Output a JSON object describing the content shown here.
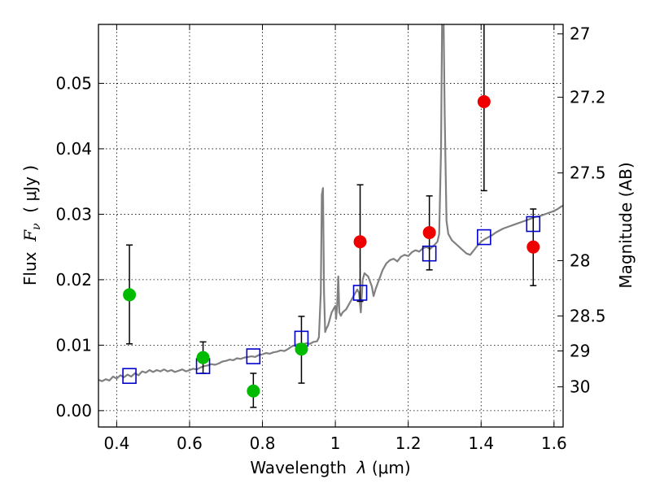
{
  "chart_data": {
    "type": "scatter",
    "xlabel": {
      "prefix": "Wavelength  ",
      "sym": "λ",
      "unit": " (μm)"
    },
    "ylabel": {
      "prefix": "Flux  ",
      "sym": "F",
      "sub": "ν",
      "unit": "  ( μJy )"
    },
    "ylabel_right": "Magnitude (AB)",
    "xlim": [
      0.35,
      1.625
    ],
    "ylim": [
      -0.0025,
      0.059
    ],
    "grid": true,
    "x_ticks": [
      {
        "value": 0.4,
        "label": "0.4"
      },
      {
        "value": 0.6,
        "label": "0.6"
      },
      {
        "value": 0.8,
        "label": "0.8"
      },
      {
        "value": 1.0,
        "label": "1"
      },
      {
        "value": 1.2,
        "label": "1.2"
      },
      {
        "value": 1.4,
        "label": "1.4"
      },
      {
        "value": 1.6,
        "label": "1.6"
      }
    ],
    "y_ticks": [
      {
        "value": 0.0,
        "label": "0.00"
      },
      {
        "value": 0.01,
        "label": "0.01"
      },
      {
        "value": 0.02,
        "label": "0.02"
      },
      {
        "value": 0.03,
        "label": "0.03"
      },
      {
        "value": 0.04,
        "label": "0.04"
      },
      {
        "value": 0.05,
        "label": "0.05"
      }
    ],
    "right_ticks": [
      {
        "mag": 27,
        "label": "27"
      },
      {
        "mag": 27.2,
        "label": "27.2"
      },
      {
        "mag": 27.5,
        "label": "27.5"
      },
      {
        "mag": 28,
        "label": "28"
      },
      {
        "mag": 28.5,
        "label": "28.5"
      },
      {
        "mag": 29,
        "label": "29"
      },
      {
        "mag": 30,
        "label": "30"
      }
    ],
    "colors": {
      "spectrum": "#808080",
      "detection": "#00bb00",
      "upper": "#ee0000",
      "model_box": "#0000cc",
      "errorbar": "#000000"
    },
    "spectrum": [
      [
        0.35,
        0.0047
      ],
      [
        0.36,
        0.0045
      ],
      [
        0.37,
        0.0048
      ],
      [
        0.38,
        0.0046
      ],
      [
        0.39,
        0.0052
      ],
      [
        0.4,
        0.0049
      ],
      [
        0.41,
        0.0054
      ],
      [
        0.42,
        0.0051
      ],
      [
        0.43,
        0.0055
      ],
      [
        0.44,
        0.0052
      ],
      [
        0.45,
        0.0057
      ],
      [
        0.46,
        0.0054
      ],
      [
        0.47,
        0.006
      ],
      [
        0.48,
        0.0058
      ],
      [
        0.49,
        0.0062
      ],
      [
        0.5,
        0.0059
      ],
      [
        0.51,
        0.0062
      ],
      [
        0.52,
        0.006
      ],
      [
        0.53,
        0.0063
      ],
      [
        0.54,
        0.006
      ],
      [
        0.55,
        0.0062
      ],
      [
        0.56,
        0.0059
      ],
      [
        0.57,
        0.0061
      ],
      [
        0.58,
        0.0063
      ],
      [
        0.59,
        0.006
      ],
      [
        0.6,
        0.0062
      ],
      [
        0.61,
        0.0064
      ],
      [
        0.62,
        0.0063
      ],
      [
        0.63,
        0.0066
      ],
      [
        0.64,
        0.0068
      ],
      [
        0.65,
        0.0069
      ],
      [
        0.66,
        0.0071
      ],
      [
        0.67,
        0.007
      ],
      [
        0.68,
        0.0072
      ],
      [
        0.69,
        0.0075
      ],
      [
        0.7,
        0.0076
      ],
      [
        0.71,
        0.0078
      ],
      [
        0.72,
        0.0077
      ],
      [
        0.73,
        0.008
      ],
      [
        0.74,
        0.0079
      ],
      [
        0.75,
        0.0081
      ],
      [
        0.76,
        0.0082
      ],
      [
        0.77,
        0.0083
      ],
      [
        0.78,
        0.0082
      ],
      [
        0.79,
        0.0085
      ],
      [
        0.8,
        0.0086
      ],
      [
        0.81,
        0.0088
      ],
      [
        0.82,
        0.0087
      ],
      [
        0.83,
        0.0089
      ],
      [
        0.84,
        0.009
      ],
      [
        0.85,
        0.0092
      ],
      [
        0.86,
        0.0091
      ],
      [
        0.87,
        0.0094
      ],
      [
        0.88,
        0.0098
      ],
      [
        0.89,
        0.01
      ],
      [
        0.9,
        0.0102
      ],
      [
        0.91,
        0.0101
      ],
      [
        0.92,
        0.0103
      ],
      [
        0.93,
        0.0102
      ],
      [
        0.94,
        0.0105
      ],
      [
        0.95,
        0.0106
      ],
      [
        0.955,
        0.0112
      ],
      [
        0.96,
        0.018
      ],
      [
        0.963,
        0.033
      ],
      [
        0.966,
        0.034
      ],
      [
        0.969,
        0.018
      ],
      [
        0.972,
        0.012
      ],
      [
        0.975,
        0.0125
      ],
      [
        0.98,
        0.013
      ],
      [
        0.99,
        0.015
      ],
      [
        1.0,
        0.016
      ],
      [
        1.002,
        0.014
      ],
      [
        1.005,
        0.016
      ],
      [
        1.008,
        0.0205
      ],
      [
        1.011,
        0.015
      ],
      [
        1.015,
        0.0145
      ],
      [
        1.02,
        0.015
      ],
      [
        1.03,
        0.0155
      ],
      [
        1.04,
        0.0165
      ],
      [
        1.05,
        0.0175
      ],
      [
        1.06,
        0.0185
      ],
      [
        1.065,
        0.018
      ],
      [
        1.07,
        0.015
      ],
      [
        1.075,
        0.02
      ],
      [
        1.08,
        0.021
      ],
      [
        1.09,
        0.0205
      ],
      [
        1.1,
        0.019
      ],
      [
        1.105,
        0.0175
      ],
      [
        1.11,
        0.0185
      ],
      [
        1.12,
        0.02
      ],
      [
        1.13,
        0.0215
      ],
      [
        1.14,
        0.0225
      ],
      [
        1.15,
        0.023
      ],
      [
        1.16,
        0.0232
      ],
      [
        1.17,
        0.0228
      ],
      [
        1.18,
        0.0235
      ],
      [
        1.19,
        0.0238
      ],
      [
        1.2,
        0.0236
      ],
      [
        1.21,
        0.0242
      ],
      [
        1.22,
        0.0245
      ],
      [
        1.23,
        0.0243
      ],
      [
        1.24,
        0.0248
      ],
      [
        1.25,
        0.025
      ],
      [
        1.26,
        0.0247
      ],
      [
        1.27,
        0.0252
      ],
      [
        1.28,
        0.0258
      ],
      [
        1.285,
        0.027
      ],
      [
        1.29,
        0.04
      ],
      [
        1.293,
        0.06
      ],
      [
        1.297,
        0.06
      ],
      [
        1.3,
        0.045
      ],
      [
        1.305,
        0.029
      ],
      [
        1.31,
        0.027
      ],
      [
        1.32,
        0.026
      ],
      [
        1.33,
        0.0255
      ],
      [
        1.34,
        0.025
      ],
      [
        1.35,
        0.0245
      ],
      [
        1.36,
        0.024
      ],
      [
        1.37,
        0.0238
      ],
      [
        1.38,
        0.0245
      ],
      [
        1.39,
        0.0252
      ],
      [
        1.4,
        0.0258
      ],
      [
        1.41,
        0.0262
      ],
      [
        1.42,
        0.0265
      ],
      [
        1.43,
        0.0268
      ],
      [
        1.44,
        0.0272
      ],
      [
        1.45,
        0.0275
      ],
      [
        1.46,
        0.0278
      ],
      [
        1.47,
        0.028
      ],
      [
        1.48,
        0.0282
      ],
      [
        1.49,
        0.0284
      ],
      [
        1.5,
        0.0286
      ],
      [
        1.51,
        0.0288
      ],
      [
        1.52,
        0.029
      ],
      [
        1.53,
        0.0292
      ],
      [
        1.54,
        0.0294
      ],
      [
        1.55,
        0.0296
      ],
      [
        1.56,
        0.0297
      ],
      [
        1.57,
        0.0299
      ],
      [
        1.58,
        0.0301
      ],
      [
        1.59,
        0.0303
      ],
      [
        1.6,
        0.0305
      ],
      [
        1.61,
        0.0308
      ],
      [
        1.62,
        0.0312
      ],
      [
        1.625,
        0.0313
      ]
    ],
    "detections": [
      {
        "x": 0.435,
        "y": 0.0177,
        "yerr_low": 0.0102,
        "yerr_high": 0.0253
      },
      {
        "x": 0.637,
        "y": 0.0081,
        "yerr_low": 0.0057,
        "yerr_high": 0.0105
      },
      {
        "x": 0.775,
        "y": 0.003,
        "yerr_low": 0.0005,
        "yerr_high": 0.0057
      },
      {
        "x": 0.907,
        "y": 0.0094,
        "yerr_low": 0.0042,
        "yerr_high": 0.0144
      }
    ],
    "upper_limits": [
      {
        "x": 1.068,
        "y": 0.0258,
        "yerr_low": 0.0167,
        "yerr_high": 0.0345
      },
      {
        "x": 1.258,
        "y": 0.0272,
        "yerr_low": 0.0215,
        "yerr_high": 0.0328
      },
      {
        "x": 1.408,
        "y": 0.0472,
        "yerr_low": 0.0336,
        "yerr_high": 0.06
      },
      {
        "x": 1.543,
        "y": 0.025,
        "yerr_low": 0.0191,
        "yerr_high": 0.0308
      }
    ],
    "model_boxes": [
      {
        "x": 0.435,
        "y": 0.0053
      },
      {
        "x": 0.637,
        "y": 0.0068
      },
      {
        "x": 0.775,
        "y": 0.0083
      },
      {
        "x": 0.907,
        "y": 0.011
      },
      {
        "x": 1.068,
        "y": 0.018
      },
      {
        "x": 1.258,
        "y": 0.024
      },
      {
        "x": 1.408,
        "y": 0.0265
      },
      {
        "x": 1.543,
        "y": 0.0285
      }
    ]
  }
}
